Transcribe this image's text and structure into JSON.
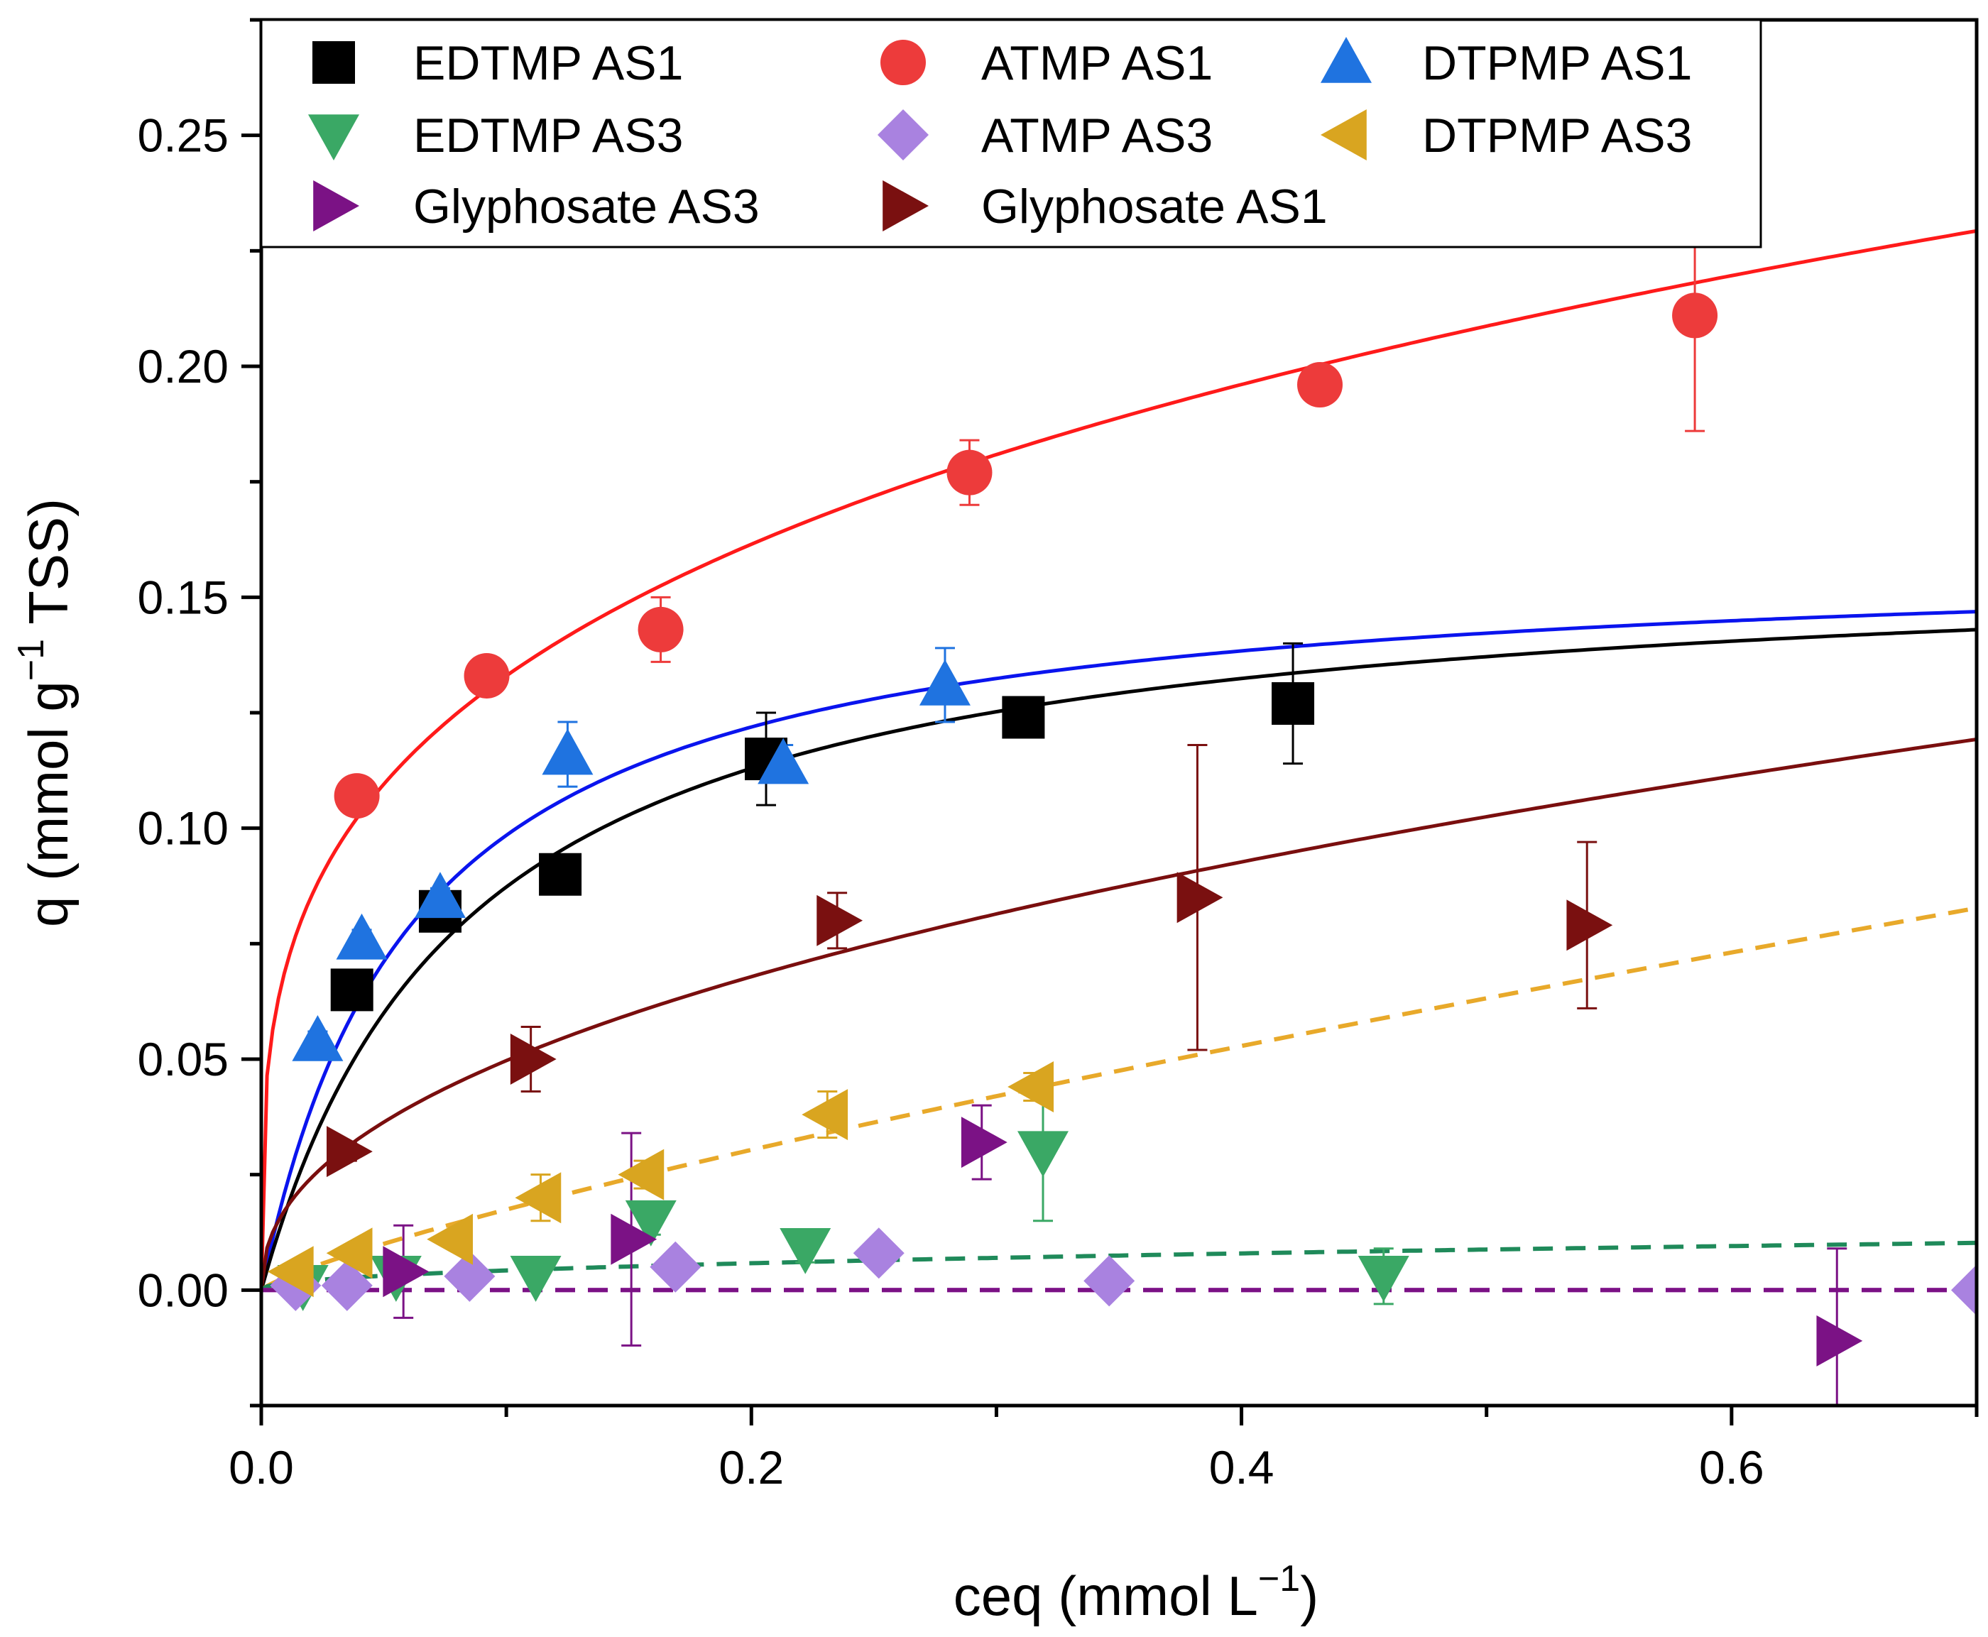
{
  "chart_data": {
    "type": "scatter",
    "title": "",
    "xlabel": "ceq (mmol L",
    "xlabel_sup": "−1",
    "xlabel_end": ")",
    "ylabel": "q (mmol g",
    "ylabel_sup": "−1",
    "ylabel_end": " TSS)",
    "xlim": [
      0,
      0.7
    ],
    "ylim": [
      -0.025,
      0.275
    ],
    "x_ticks": [
      0.0,
      0.2,
      0.4,
      0.6
    ],
    "x_tick_labels": [
      "0.0",
      "0.2",
      "0.4",
      "0.6"
    ],
    "x_minor_ticks": [
      0.1,
      0.3,
      0.5,
      0.7
    ],
    "y_ticks": [
      0.0,
      0.05,
      0.1,
      0.15,
      0.2,
      0.25
    ],
    "y_tick_labels": [
      "0.00",
      "0.05",
      "0.10",
      "0.15",
      "0.20",
      "0.25"
    ],
    "y_minor_ticks": [
      -0.025,
      0.025,
      0.075,
      0.125,
      0.175,
      0.225,
      0.275
    ],
    "legend_position": "top-left",
    "series": [
      {
        "name": "EDTMP AS1",
        "marker": "square",
        "color": "#000000",
        "x": [
          0.037,
          0.073,
          0.122,
          0.206,
          0.311,
          0.421
        ],
        "y": [
          0.065,
          0.082,
          0.09,
          0.115,
          0.124,
          0.127
        ],
        "err": [
          0.002,
          0.003,
          0.002,
          0.01,
          0.002,
          0.013
        ]
      },
      {
        "name": "ATMP AS1",
        "marker": "circle",
        "color": "#ed3b3b",
        "x": [
          0.039,
          0.092,
          0.163,
          0.289,
          0.432,
          0.585
        ],
        "y": [
          0.107,
          0.133,
          0.143,
          0.177,
          0.196,
          0.211
        ],
        "err": [
          0.002,
          0.004,
          0.007,
          0.007,
          0.002,
          0.025
        ]
      },
      {
        "name": "DTPMP AS1",
        "marker": "triangle-up",
        "color": "#1f73e0",
        "x": [
          0.023,
          0.041,
          0.073,
          0.125,
          0.213,
          0.279
        ],
        "y": [
          0.054,
          0.076,
          0.085,
          0.116,
          0.114,
          0.131
        ],
        "err": [
          0.002,
          0.002,
          0.002,
          0.007,
          0.004,
          0.008
        ]
      },
      {
        "name": "EDTMP AS3",
        "marker": "triangle-down",
        "color": "#3aa865",
        "x": [
          0.017,
          0.055,
          0.112,
          0.159,
          0.222,
          0.319,
          0.458
        ],
        "y": [
          0.001,
          0.003,
          0.003,
          0.015,
          0.009,
          0.03,
          0.003
        ],
        "err": [
          0.001,
          0.001,
          0.001,
          0.003,
          0.003,
          0.015,
          0.006
        ]
      },
      {
        "name": "ATMP AS3",
        "marker": "diamond",
        "color": "#a982e0",
        "x": [
          0.014,
          0.035,
          0.085,
          0.169,
          0.252,
          0.346,
          0.7
        ],
        "y": [
          0.001,
          0.001,
          0.003,
          0.005,
          0.008,
          0.002,
          0.0
        ],
        "err": [
          0,
          0,
          0,
          0,
          0,
          0,
          0
        ]
      },
      {
        "name": "DTPMP AS3",
        "marker": "triangle-left",
        "color": "#d9a520",
        "x": [
          0.013,
          0.037,
          0.078,
          0.114,
          0.156,
          0.231,
          0.315
        ],
        "y": [
          0.004,
          0.008,
          0.011,
          0.02,
          0.025,
          0.038,
          0.044
        ],
        "err": [
          0.001,
          0.001,
          0.001,
          0.005,
          0.003,
          0.005,
          0.003
        ]
      },
      {
        "name": "Glyphosate AS3",
        "marker": "triangle-right",
        "color": "#7b1285",
        "x": [
          0.058,
          0.151,
          0.294,
          0.643
        ],
        "y": [
          0.004,
          0.011,
          0.032,
          -0.011
        ],
        "err": [
          0.01,
          0.023,
          0.008,
          0.02
        ]
      },
      {
        "name": "Glyphosate AS1",
        "marker": "triangle-right",
        "color": "#7a1010",
        "x": [
          0.035,
          0.11,
          0.235,
          0.382,
          0.541
        ],
        "y": [
          0.03,
          0.05,
          0.08,
          0.085,
          0.079
        ],
        "err": [
          0.002,
          0.007,
          0.006,
          0.033,
          0.018
        ]
      }
    ],
    "fit_curves": [
      {
        "name": "ATMP AS1 fit",
        "model": "freundlich",
        "k": 0.2534,
        "n": 0.28,
        "color": "#ff1a1a",
        "dashed": false
      },
      {
        "name": "DTPMP AS1 fit",
        "model": "langmuir",
        "qmax": 0.16,
        "K": 16,
        "color": "#0a14ee",
        "dashed": false
      },
      {
        "name": "EDTMP AS1 fit",
        "model": "langmuir",
        "qmax": 0.16,
        "K": 12,
        "color": "#000000",
        "dashed": false
      },
      {
        "name": "Glyphosate AS1 fit",
        "model": "freundlich",
        "k": 0.14,
        "n": 0.45,
        "color": "#7a0e0e",
        "dashed": false
      },
      {
        "name": "DTPMP AS3 fit",
        "model": "freundlich",
        "k": 0.11,
        "n": 0.8,
        "color": "#e8a92a",
        "dashed": true
      },
      {
        "name": "EDTMP AS3 fit",
        "model": "freundlich",
        "k": 0.012,
        "n": 0.45,
        "color": "#1f8a5a",
        "dashed": true
      },
      {
        "name": "ATMP AS3 fit",
        "model": "linear",
        "slope": 0.0,
        "intercept": 0.0,
        "color": "#c23cdc",
        "dashed": true
      },
      {
        "name": "Glyphosate AS3 fit",
        "model": "linear",
        "slope": 0.0,
        "intercept": 0.0,
        "color": "#7b1285",
        "dashed": true
      }
    ],
    "legend": [
      {
        "label": "EDTMP AS1",
        "marker": "square",
        "color": "#000000"
      },
      {
        "label": "ATMP AS1",
        "marker": "circle",
        "color": "#ed3b3b"
      },
      {
        "label": "DTPMP AS1",
        "marker": "triangle-up",
        "color": "#1f73e0"
      },
      {
        "label": "EDTMP AS3",
        "marker": "triangle-down",
        "color": "#3aa865"
      },
      {
        "label": "ATMP AS3",
        "marker": "diamond",
        "color": "#a982e0"
      },
      {
        "label": "DTPMP AS3",
        "marker": "triangle-left",
        "color": "#d9a520"
      },
      {
        "label": "Glyphosate AS3",
        "marker": "triangle-right",
        "color": "#7b1285"
      },
      {
        "label": "Glyphosate AS1",
        "marker": "triangle-right",
        "color": "#7a1010"
      }
    ]
  }
}
